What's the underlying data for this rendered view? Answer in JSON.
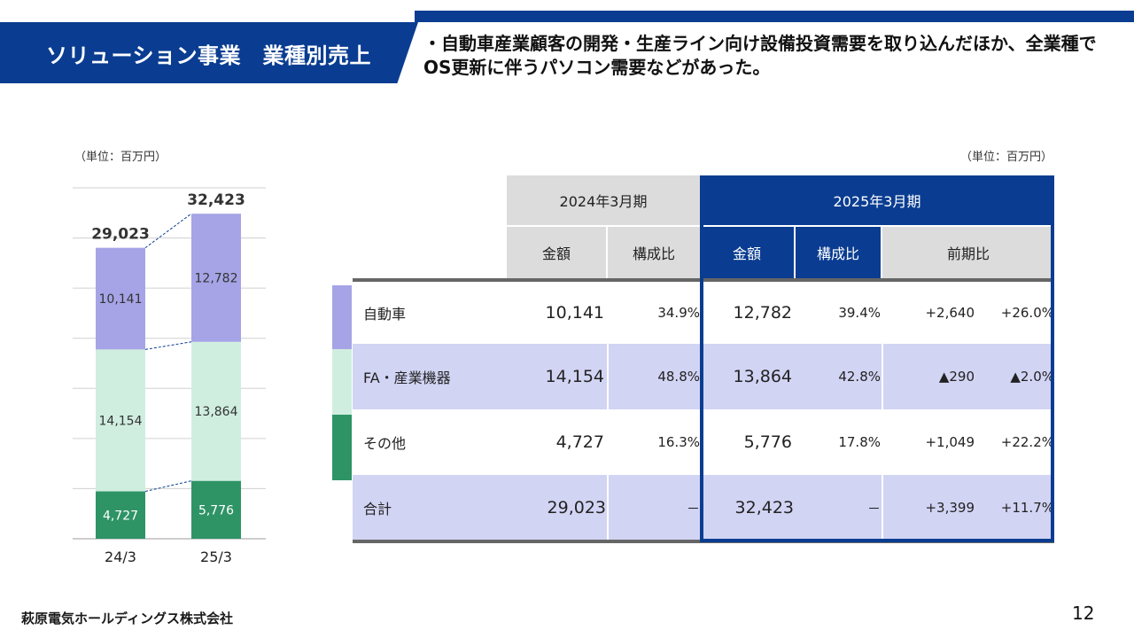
{
  "header": {
    "title": "ソリューション事業　業種別売上",
    "lead": "・自動車産業顧客の開発・生産ライン向け設備投資需要を取り込んだほか、全業種でOS更新に伴うパソコン需要などがあった。"
  },
  "colors": {
    "brand": "#0a3d91",
    "auto": "#a6a4e6",
    "fa": "#cfeee0",
    "other": "#2e9466",
    "table_band": "#d2d4f4",
    "header_grey": "#dcdcdc"
  },
  "chart_data": {
    "type": "bar",
    "stacked": true,
    "unit_label": "（単位：百万円）",
    "categories": [
      "24/3",
      "25/3"
    ],
    "series": [
      {
        "key": "other",
        "values": [
          4727,
          5776
        ],
        "labels": [
          "4,727",
          "5,776"
        ]
      },
      {
        "key": "fa",
        "values": [
          14154,
          13864
        ],
        "labels": [
          "14,154",
          "13,864"
        ]
      },
      {
        "key": "auto",
        "values": [
          10141,
          12782
        ],
        "labels": [
          "10,141",
          "12,782"
        ]
      }
    ],
    "totals": [
      29023,
      32423
    ],
    "total_labels": [
      "29,023",
      "32,423"
    ],
    "ylim": [
      0,
      35000
    ],
    "grid": true
  },
  "table": {
    "unit_label": "（単位：百万円）",
    "period_prev": "2024年3月期",
    "period_curr": "2025年3月期",
    "col_amount": "金額",
    "col_ratio": "構成比",
    "col_yoy": "前期比",
    "rows": [
      {
        "label": "自動車",
        "prev_amount": "10,141",
        "prev_ratio": "34.9%",
        "curr_amount": "12,782",
        "curr_ratio": "39.4%",
        "diff": "+2,640",
        "diff_pct": "+26.0%"
      },
      {
        "label": "FA・産業機器",
        "prev_amount": "14,154",
        "prev_ratio": "48.8%",
        "curr_amount": "13,864",
        "curr_ratio": "42.8%",
        "diff": "▲290",
        "diff_pct": "▲2.0%"
      },
      {
        "label": "その他",
        "prev_amount": "4,727",
        "prev_ratio": "16.3%",
        "curr_amount": "5,776",
        "curr_ratio": "17.8%",
        "diff": "+1,049",
        "diff_pct": "+22.2%"
      },
      {
        "label": "合計",
        "prev_amount": "29,023",
        "prev_ratio": "－",
        "curr_amount": "32,423",
        "curr_ratio": "－",
        "diff": "+3,399",
        "diff_pct": "+11.7%"
      }
    ]
  },
  "footer": {
    "company": "萩原電気ホールディングス株式会社",
    "page": "12"
  }
}
